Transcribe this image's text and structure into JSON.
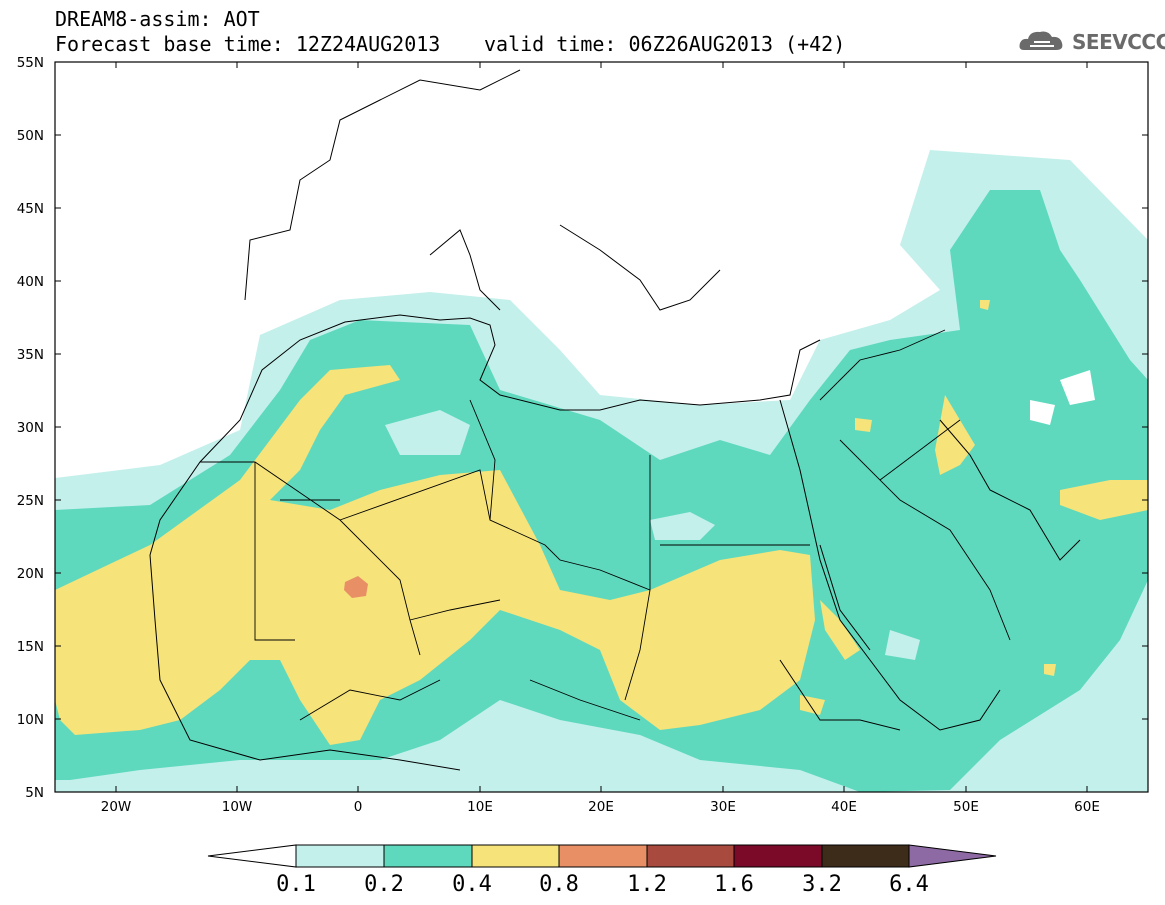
{
  "header": {
    "title": "DREAM8-assim: AOT",
    "base_time": "Forecast base time: 12Z24AUG2013",
    "valid_time": "valid time: 06Z26AUG2013 (+42)"
  },
  "logo": {
    "text": "SEEVCCC",
    "icon": "cloud-icon"
  },
  "map": {
    "lat_range": [
      5,
      55
    ],
    "lon_range": [
      -25,
      65
    ],
    "lat_ticks": [
      "5N",
      "10N",
      "15N",
      "20N",
      "25N",
      "30N",
      "35N",
      "40N",
      "45N",
      "50N",
      "55N"
    ],
    "lon_ticks": [
      "20W",
      "10W",
      "0",
      "10E",
      "20E",
      "30E",
      "40E",
      "50E",
      "60E"
    ]
  },
  "colorbar": {
    "labels": [
      "0.1",
      "0.2",
      "0.4",
      "0.8",
      "1.2",
      "1.6",
      "3.2",
      "6.4"
    ],
    "colors": [
      "#ffffff",
      "#c4f0ec",
      "#5ed9bd",
      "#f6e37a",
      "#e98f66",
      "#a84a3d",
      "#7a0a28",
      "#3e2c1a",
      "#8d6aa3"
    ]
  },
  "colors": {
    "aot_01_02": "#c4f0ec",
    "aot_02_04": "#5ed9bd",
    "aot_04_08": "#f6e37a",
    "aot_08_12": "#e98f66"
  }
}
